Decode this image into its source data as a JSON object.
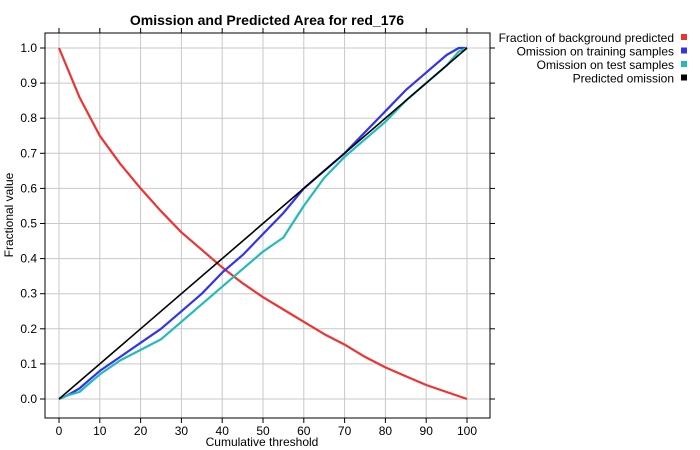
{
  "chart_data": {
    "type": "line",
    "title": "Omission and Predicted Area for red_176",
    "xlabel": "Cumulative threshold",
    "ylabel": "Fractional value",
    "xlim": [
      0,
      100
    ],
    "ylim": [
      0,
      1
    ],
    "x_ticks": [
      "0",
      "10",
      "20",
      "30",
      "40",
      "50",
      "60",
      "70",
      "80",
      "90",
      "100"
    ],
    "y_ticks": [
      "0.0",
      "0.1",
      "0.2",
      "0.3",
      "0.4",
      "0.5",
      "0.6",
      "0.7",
      "0.8",
      "0.9",
      "1.0"
    ],
    "grid": true,
    "legend_position": "right, outside plot",
    "series": [
      {
        "name": "Fraction of background predicted",
        "color": "#ee3333",
        "x": [
          0,
          5,
          10,
          15,
          20,
          25,
          30,
          35,
          40,
          45,
          50,
          55,
          60,
          65,
          70,
          75,
          80,
          85,
          90,
          95,
          100
        ],
        "y": [
          1.0,
          0.86,
          0.75,
          0.67,
          0.6,
          0.535,
          0.475,
          0.425,
          0.375,
          0.33,
          0.29,
          0.255,
          0.22,
          0.185,
          0.155,
          0.12,
          0.09,
          0.065,
          0.04,
          0.02,
          0.0
        ]
      },
      {
        "name": "Omission on training samples",
        "color": "#3333ee",
        "x": [
          0,
          2,
          5,
          8,
          10,
          15,
          20,
          25,
          30,
          35,
          40,
          45,
          50,
          55,
          60,
          65,
          70,
          75,
          80,
          85,
          90,
          95,
          98,
          100
        ],
        "y": [
          0.0,
          0.01,
          0.03,
          0.06,
          0.08,
          0.12,
          0.16,
          0.2,
          0.25,
          0.3,
          0.36,
          0.41,
          0.47,
          0.53,
          0.6,
          0.65,
          0.7,
          0.76,
          0.82,
          0.88,
          0.93,
          0.98,
          1.0,
          1.0
        ]
      },
      {
        "name": "Omission on test samples",
        "color": "#22bbbb",
        "x": [
          0,
          2,
          5,
          8,
          10,
          15,
          20,
          25,
          30,
          35,
          40,
          45,
          50,
          55,
          60,
          65,
          70,
          75,
          80,
          85,
          90,
          95,
          98,
          100
        ],
        "y": [
          0.0,
          0.01,
          0.02,
          0.05,
          0.07,
          0.11,
          0.14,
          0.17,
          0.22,
          0.27,
          0.32,
          0.37,
          0.42,
          0.46,
          0.55,
          0.63,
          0.69,
          0.74,
          0.79,
          0.85,
          0.9,
          0.95,
          0.99,
          1.0
        ]
      },
      {
        "name": "Predicted omission",
        "color": "#000000",
        "x": [
          0,
          100
        ],
        "y": [
          0.0,
          1.0
        ]
      }
    ]
  }
}
